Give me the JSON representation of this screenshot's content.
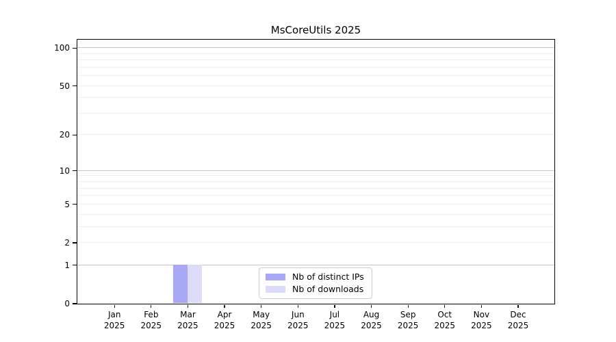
{
  "chart_data": {
    "type": "bar",
    "title": "MsCoreUtils 2025",
    "categories": [
      "Jan 2025",
      "Feb 2025",
      "Mar 2025",
      "Apr 2025",
      "May 2025",
      "Jun 2025",
      "Jul 2025",
      "Aug 2025",
      "Sep 2025",
      "Oct 2025",
      "Nov 2025",
      "Dec 2025"
    ],
    "series": [
      {
        "name": "Nb of distinct IPs",
        "color": "#a8a8f5",
        "values": [
          0,
          0,
          1,
          0,
          0,
          0,
          0,
          0,
          0,
          0,
          0,
          0
        ]
      },
      {
        "name": "Nb of downloads",
        "color": "#dcdcf9",
        "values": [
          0,
          0,
          1,
          0,
          0,
          0,
          0,
          0,
          0,
          0,
          0,
          0
        ]
      }
    ],
    "xlabel": "",
    "ylabel": "",
    "yscale": "log1p",
    "ylim": [
      0,
      117
    ],
    "yticks": [
      0,
      1,
      2,
      5,
      10,
      20,
      50,
      100
    ],
    "major_gridlines": [
      1,
      10,
      100
    ],
    "minor_gridlines": [
      2,
      3,
      4,
      5,
      6,
      7,
      8,
      9,
      20,
      30,
      40,
      50,
      60,
      70,
      80,
      90
    ],
    "grid": "horizontal",
    "legend_position": "lower center"
  },
  "legend": {
    "items": [
      {
        "label": "Nb of distinct IPs",
        "color": "#a8a8f5"
      },
      {
        "label": "Nb of downloads",
        "color": "#dcdcf9"
      }
    ]
  },
  "colors": {
    "background": "#ffffff",
    "spine": "#000000",
    "major_grid": "#c3c3c3",
    "minor_grid": "#ededed",
    "bar_distinct_ips": "#a8a8f5",
    "bar_downloads": "#dcdcf9",
    "legend_border": "#cccccc"
  }
}
